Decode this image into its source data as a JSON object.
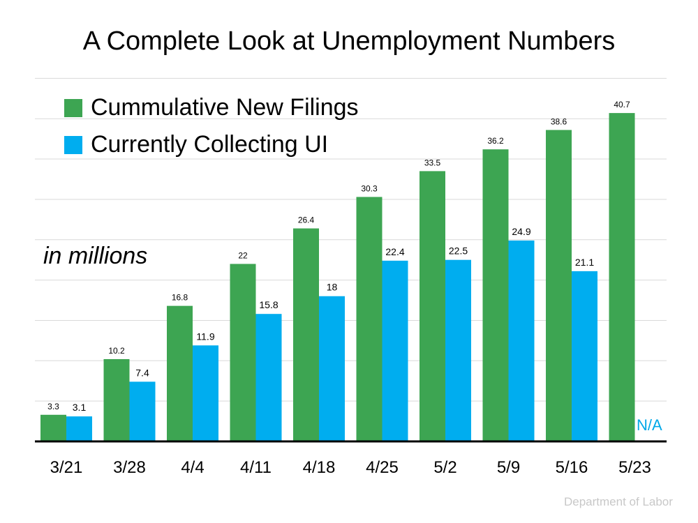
{
  "chart_data": {
    "type": "bar",
    "title": "A Complete Look at Unemployment Numbers",
    "unit_note": "in millions",
    "categories": [
      "3/21",
      "3/28",
      "4/4",
      "4/11",
      "4/18",
      "4/25",
      "5/2",
      "5/9",
      "5/16",
      "5/23"
    ],
    "series": [
      {
        "name": "Cummulative New Filings",
        "color": "#3da552",
        "values": [
          3.3,
          10.2,
          16.8,
          22,
          26.4,
          30.3,
          33.5,
          36.2,
          38.6,
          40.7
        ],
        "labels": [
          "3.3",
          "10.2",
          "16.8",
          "22",
          "26.4",
          "30.3",
          "33.5",
          "36.2",
          "38.6",
          "40.7"
        ]
      },
      {
        "name": "Currently Collecting UI",
        "color": "#00adef",
        "values": [
          3.1,
          7.4,
          11.9,
          15.8,
          18,
          22.4,
          22.5,
          24.9,
          21.1,
          null
        ],
        "labels": [
          "3.1",
          "7.4",
          "11.9",
          "15.8",
          "18",
          "22.4",
          "22.5",
          "24.9",
          "21.1",
          ""
        ]
      }
    ],
    "missing_label": "N/A",
    "ylim": [
      0,
      45
    ],
    "grid": true,
    "legend_position": "top-left"
  },
  "source": "Department of Labor"
}
